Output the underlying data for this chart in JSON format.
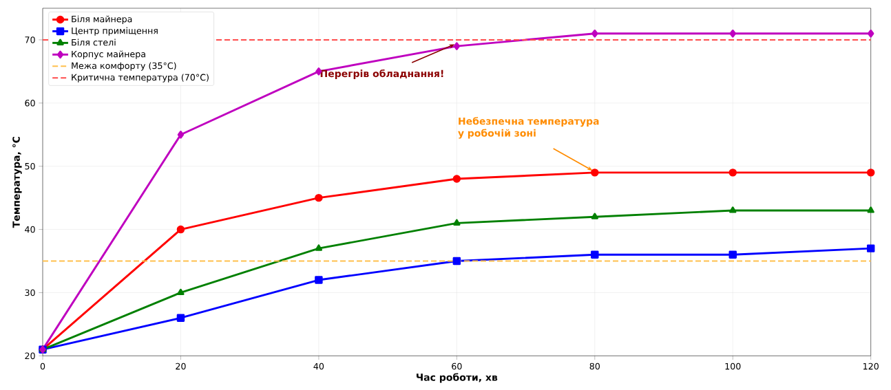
{
  "chart_data": {
    "type": "line",
    "xlabel": "Час роботи, хв",
    "ylabel": "Температура, °C",
    "x": [
      0,
      20,
      40,
      60,
      80,
      100,
      120
    ],
    "series": [
      {
        "name": "Біля майнера",
        "color": "#ff0000",
        "marker": "circle",
        "values": [
          21,
          40,
          45,
          48,
          49,
          49,
          49
        ]
      },
      {
        "name": "Центр приміщення",
        "color": "#0000ff",
        "marker": "square",
        "values": [
          21,
          26,
          32,
          35,
          36,
          36,
          37
        ]
      },
      {
        "name": "Біля стелі",
        "color": "#008000",
        "marker": "triangle",
        "values": [
          21,
          30,
          37,
          41,
          42,
          43,
          43
        ]
      },
      {
        "name": "Корпус майнера",
        "color": "#bf00bf",
        "marker": "diamond",
        "values": [
          21,
          55,
          65,
          69,
          71,
          71,
          71
        ]
      }
    ],
    "ref_lines": [
      {
        "axis": "y",
        "value": 35,
        "label": "Межа комфорту (35°C)",
        "color": "#ffc04c",
        "line_style": "dashed"
      },
      {
        "axis": "y",
        "value": 70,
        "label": "Критична температура (70°C)",
        "color": "#ff4c4c",
        "line_style": "dashed"
      }
    ],
    "annotations": [
      {
        "text": "Перегрів обладнання!",
        "x": 60,
        "y": 69
      },
      {
        "text": "Небезпечна температура у робочій зоні",
        "x": 80,
        "y": 49
      }
    ],
    "xlim": [
      0,
      120
    ],
    "ylim": [
      20,
      75
    ],
    "xticks": [
      0,
      20,
      40,
      60,
      80,
      100,
      120
    ],
    "yticks": [
      20,
      30,
      40,
      50,
      60,
      70
    ],
    "grid": true,
    "legend": "top left",
    "line_style": "solid"
  }
}
